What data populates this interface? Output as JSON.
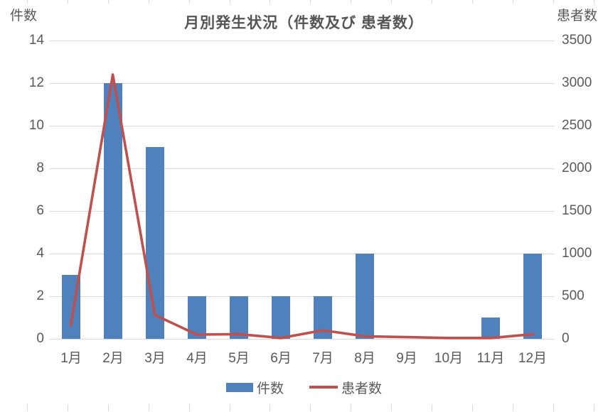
{
  "chart_data": {
    "type": "bar",
    "subtype": "bar-line-combo",
    "title": "月別発生状況（件数及び 患者数）",
    "categories": [
      "1月",
      "2月",
      "3月",
      "4月",
      "5月",
      "6月",
      "7月",
      "8月",
      "9月",
      "10月",
      "11月",
      "12月"
    ],
    "series": [
      {
        "name": "件数",
        "type": "bar",
        "axis": "left",
        "color": "#4f81bd",
        "values": [
          3,
          12,
          9,
          2,
          2,
          2,
          2,
          4,
          0,
          0,
          1,
          4
        ]
      },
      {
        "name": "患者数",
        "type": "line",
        "axis": "right",
        "color": "#c0504d",
        "values": [
          160,
          3100,
          280,
          50,
          55,
          10,
          100,
          30,
          20,
          10,
          10,
          55
        ]
      }
    ],
    "left_axis": {
      "title": "件数",
      "min": 0,
      "max": 14,
      "ticks": [
        14,
        12,
        10,
        8,
        6,
        4,
        2,
        0
      ]
    },
    "right_axis": {
      "title": "患者数",
      "min": 0,
      "max": 3500,
      "ticks": [
        3500,
        3000,
        2500,
        2000,
        1500,
        1000,
        500,
        0
      ]
    },
    "grid": true,
    "legend_position": "bottom"
  },
  "colors": {
    "bar": "#4f81bd",
    "line": "#c0504d",
    "gridline": "#d9d9d9",
    "axis_text": "#595959",
    "title_text": "#555555",
    "background": "#ffffff"
  }
}
